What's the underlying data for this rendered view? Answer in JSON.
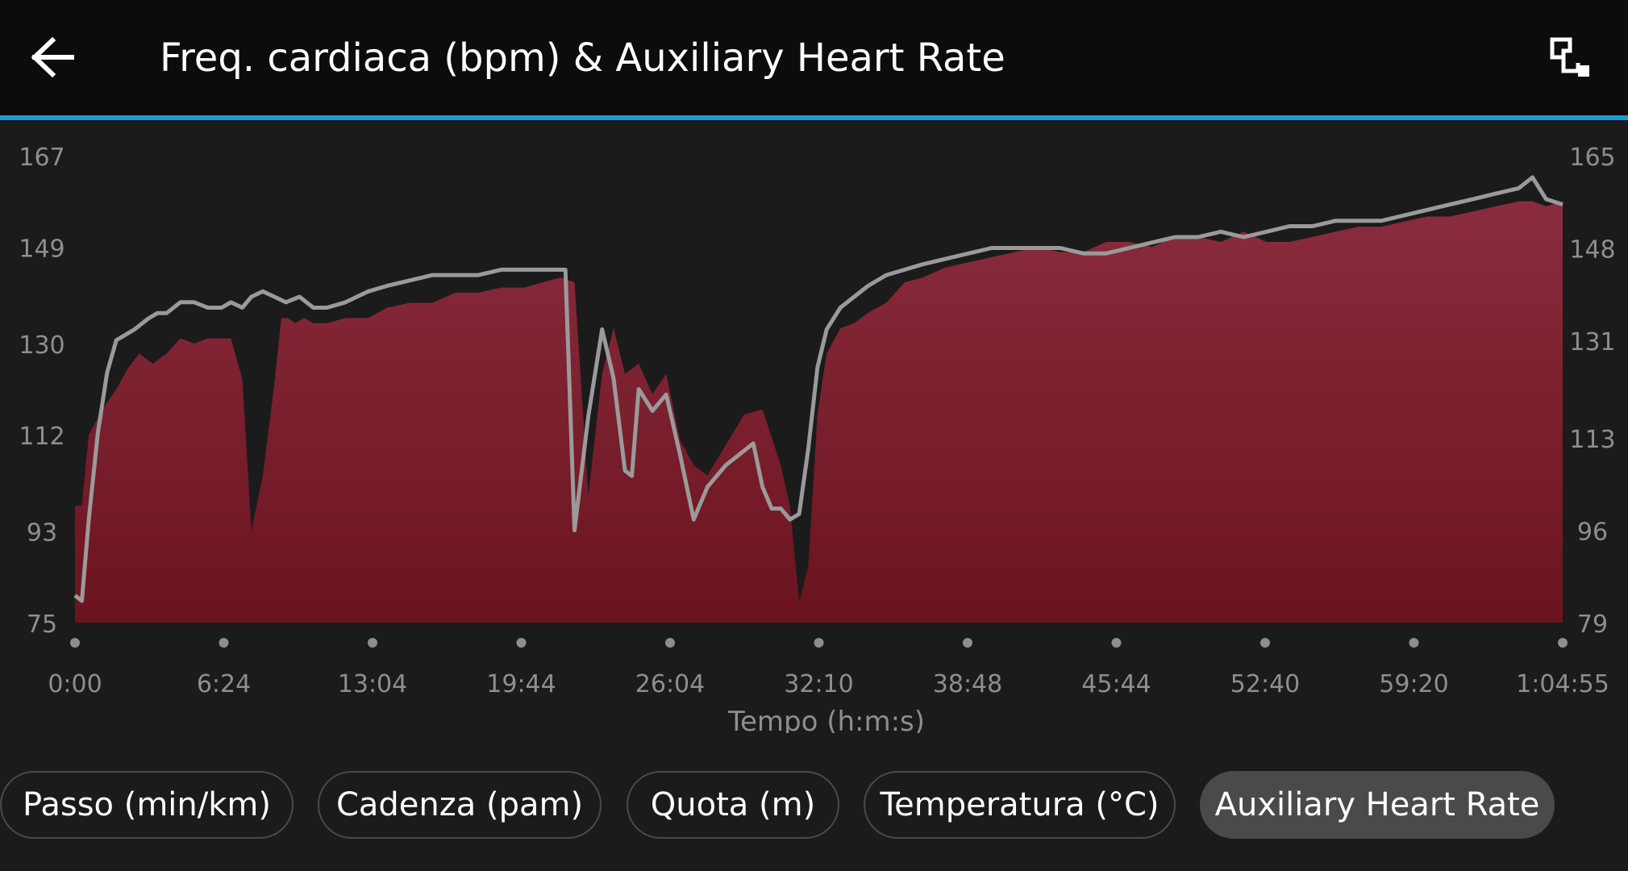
{
  "header": {
    "title": "Freq. cardiaca (bpm) & Auxiliary Heart Rate",
    "back_icon": "arrow-left-icon",
    "expand_icon": "expand-icon"
  },
  "colors": {
    "accent": "#1a9bd7",
    "primary_fill_top": "#8a2c3e",
    "primary_fill_bottom": "#6b131f",
    "aux_line": "#9a9a9a",
    "background": "#1b1b1b"
  },
  "chart_data": {
    "type": "area",
    "title": "",
    "xlabel": "Tempo (h:m:s)",
    "ylabel": "",
    "x_tick_labels": [
      "0:00",
      "6:24",
      "13:04",
      "19:44",
      "26:04",
      "32:10",
      "38:48",
      "45:44",
      "52:40",
      "59:20",
      "1:04:55"
    ],
    "y_left_ticks": [
      75,
      93,
      112,
      130,
      149,
      167
    ],
    "y_right_ticks": [
      79,
      96,
      113,
      131,
      148,
      165
    ],
    "ylim_left": [
      75,
      167
    ],
    "ylim_right": [
      79,
      165
    ],
    "xlim_minutes": [
      0,
      64.92
    ],
    "series": [
      {
        "name": "Freq. cardiaca (bpm)",
        "style": "area",
        "axis": "left",
        "x": [
          0,
          0.3,
          0.6,
          1.2,
          1.8,
          2.3,
          2.8,
          3.4,
          4.0,
          4.6,
          5.2,
          5.8,
          6.4,
          6.8,
          7.3,
          7.7,
          8.2,
          8.7,
          9.0,
          9.3,
          9.6,
          10.0,
          10.4,
          11.0,
          11.8,
          12.8,
          13.6,
          14.6,
          15.6,
          16.6,
          17.6,
          18.6,
          19.6,
          20.4,
          21.2,
          21.8,
          22.4,
          23.0,
          23.5,
          24.0,
          24.6,
          25.2,
          25.8,
          26.4,
          27.0,
          27.6,
          28.4,
          29.2,
          30.0,
          30.8,
          31.2,
          31.6,
          32.0,
          32.4,
          32.8,
          33.4,
          34.0,
          34.6,
          35.4,
          36.2,
          37.0,
          38.0,
          39.0,
          40.0,
          41.0,
          42.0,
          43.0,
          44.0,
          45.0,
          46.0,
          47.0,
          48.0,
          49.0,
          50.0,
          51.0,
          52.0,
          53.0,
          54.0,
          55.0,
          56.0,
          57.0,
          58.0,
          59.0,
          60.0,
          61.0,
          62.0,
          63.0,
          63.6,
          64.2,
          64.92
        ],
        "values": [
          98,
          98,
          112,
          117,
          121,
          125,
          128,
          126,
          128,
          131,
          130,
          131,
          131,
          131,
          123,
          93,
          104,
          122,
          135,
          135,
          134,
          135,
          134,
          134,
          135,
          135,
          137,
          138,
          138,
          140,
          140,
          141,
          141,
          142,
          143,
          142,
          100,
          124,
          133,
          124,
          126,
          120,
          124,
          111,
          106,
          104,
          110,
          116,
          117,
          106,
          98,
          79,
          86,
          116,
          128,
          133,
          134,
          136,
          138,
          142,
          143,
          145,
          146,
          147,
          148,
          149,
          148,
          148,
          150,
          150,
          149,
          151,
          151,
          150,
          152,
          150,
          150,
          151,
          152,
          153,
          153,
          154,
          155,
          155,
          156,
          157,
          158,
          158,
          157,
          158
        ]
      },
      {
        "name": "Auxiliary Heart Rate",
        "style": "line",
        "axis": "right",
        "x": [
          0,
          0.3,
          0.6,
          1.0,
          1.4,
          1.8,
          2.2,
          2.6,
          3.2,
          3.6,
          4.0,
          4.6,
          5.2,
          5.8,
          6.4,
          6.8,
          7.3,
          7.7,
          8.2,
          8.7,
          9.2,
          9.8,
          10.4,
          11.0,
          11.8,
          12.8,
          13.6,
          14.6,
          15.6,
          16.6,
          17.6,
          18.6,
          19.6,
          20.4,
          21.2,
          21.4,
          21.8,
          22.4,
          23.0,
          23.5,
          24.0,
          24.3,
          24.6,
          25.2,
          25.8,
          26.4,
          27.0,
          27.6,
          28.4,
          29.0,
          29.6,
          30.0,
          30.4,
          30.8,
          31.2,
          31.6,
          32.0,
          32.4,
          32.8,
          33.4,
          34.0,
          34.6,
          35.4,
          36.2,
          37.0,
          38.0,
          39.0,
          40.0,
          41.0,
          42.0,
          43.0,
          44.0,
          45.0,
          46.0,
          47.0,
          48.0,
          49.0,
          50.0,
          51.0,
          52.0,
          53.0,
          54.0,
          55.0,
          56.0,
          57.0,
          58.0,
          59.0,
          60.0,
          61.0,
          62.0,
          63.0,
          63.6,
          64.2,
          64.92
        ],
        "values": [
          84,
          83,
          98,
          114,
          125,
          131,
          132,
          133,
          135,
          136,
          136,
          138,
          138,
          137,
          137,
          138,
          137,
          139,
          140,
          139,
          138,
          139,
          137,
          137,
          138,
          140,
          141,
          142,
          143,
          143,
          143,
          144,
          144,
          144,
          144,
          144,
          96,
          117,
          133,
          124,
          107,
          106,
          122,
          118,
          121,
          110,
          98,
          104,
          108,
          110,
          112,
          104,
          100,
          100,
          98,
          99,
          111,
          126,
          133,
          137,
          139,
          141,
          143,
          144,
          145,
          146,
          147,
          148,
          148,
          148,
          148,
          147,
          147,
          148,
          149,
          150,
          150,
          151,
          150,
          151,
          152,
          152,
          153,
          153,
          153,
          154,
          155,
          156,
          157,
          158,
          159,
          161,
          157,
          156
        ]
      }
    ],
    "grid": false,
    "legend": "none"
  },
  "chips": [
    {
      "label": "Passo (min/km)",
      "selected": false
    },
    {
      "label": "Cadenza (pam)",
      "selected": false
    },
    {
      "label": "Quota (m)",
      "selected": false
    },
    {
      "label": "Temperatura (°C)",
      "selected": false
    },
    {
      "label": "Auxiliary Heart Rate",
      "selected": true
    }
  ]
}
